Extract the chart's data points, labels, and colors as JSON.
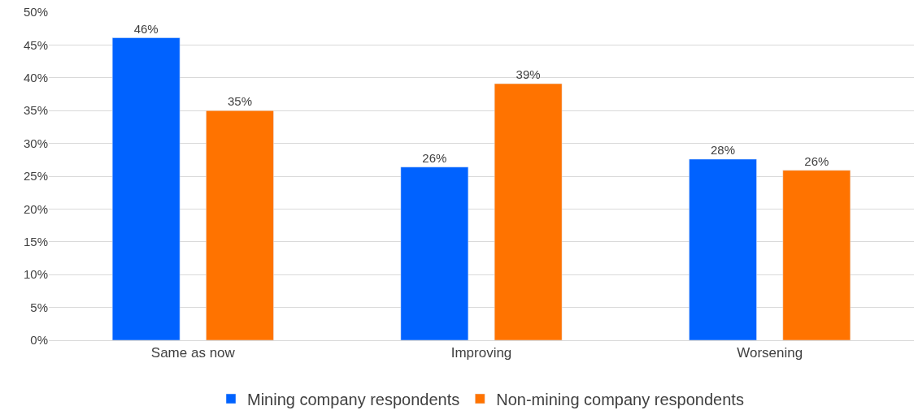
{
  "chart_data": {
    "type": "bar",
    "categories": [
      "Same as now",
      "Improving",
      "Worsening"
    ],
    "series": [
      {
        "name": "Mining company respondents",
        "color": "#0062ff",
        "values": [
          46.1,
          26.4,
          27.6
        ],
        "value_labels": [
          "46%",
          "26%",
          "28%"
        ]
      },
      {
        "name": "Non-mining company respondents",
        "color": "#ff7300",
        "values": [
          35,
          39.1,
          25.9
        ],
        "value_labels": [
          "35%",
          "39%",
          "26%"
        ]
      }
    ],
    "ylim": [
      0,
      50
    ],
    "yticks": [
      {
        "value": 0,
        "label": "0%"
      },
      {
        "value": 5,
        "label": "5%"
      },
      {
        "value": 10,
        "label": "10%"
      },
      {
        "value": 15,
        "label": "15%"
      },
      {
        "value": 20,
        "label": "20%"
      },
      {
        "value": 25,
        "label": "25%"
      },
      {
        "value": 30,
        "label": "30%"
      },
      {
        "value": 35,
        "label": "35%"
      },
      {
        "value": 40,
        "label": "40%"
      },
      {
        "value": 45,
        "label": "45%"
      },
      {
        "value": 50,
        "label": "50%"
      }
    ],
    "grid": "y",
    "legend": "bottom"
  }
}
